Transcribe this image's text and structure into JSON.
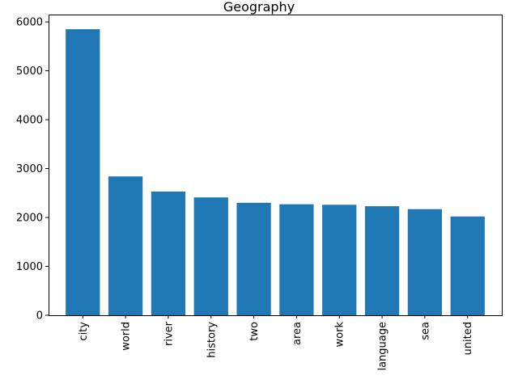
{
  "chart_data": {
    "type": "bar",
    "title": "Geography",
    "xlabel": "",
    "ylabel": "",
    "categories": [
      "city",
      "world",
      "river",
      "history",
      "two",
      "area",
      "work",
      "language",
      "sea",
      "united"
    ],
    "values": [
      5850,
      2840,
      2530,
      2410,
      2300,
      2270,
      2260,
      2230,
      2170,
      2020
    ],
    "ylim": [
      0,
      6150
    ],
    "yticks": [
      0,
      1000,
      2000,
      3000,
      4000,
      5000,
      6000
    ],
    "ytick_labels": [
      "0",
      "1000",
      "2000",
      "3000",
      "4000",
      "5000",
      "6000"
    ],
    "x_tick_rotation": "vertical",
    "grid": false,
    "legend": "none",
    "bar_color": "#1f77b4"
  }
}
